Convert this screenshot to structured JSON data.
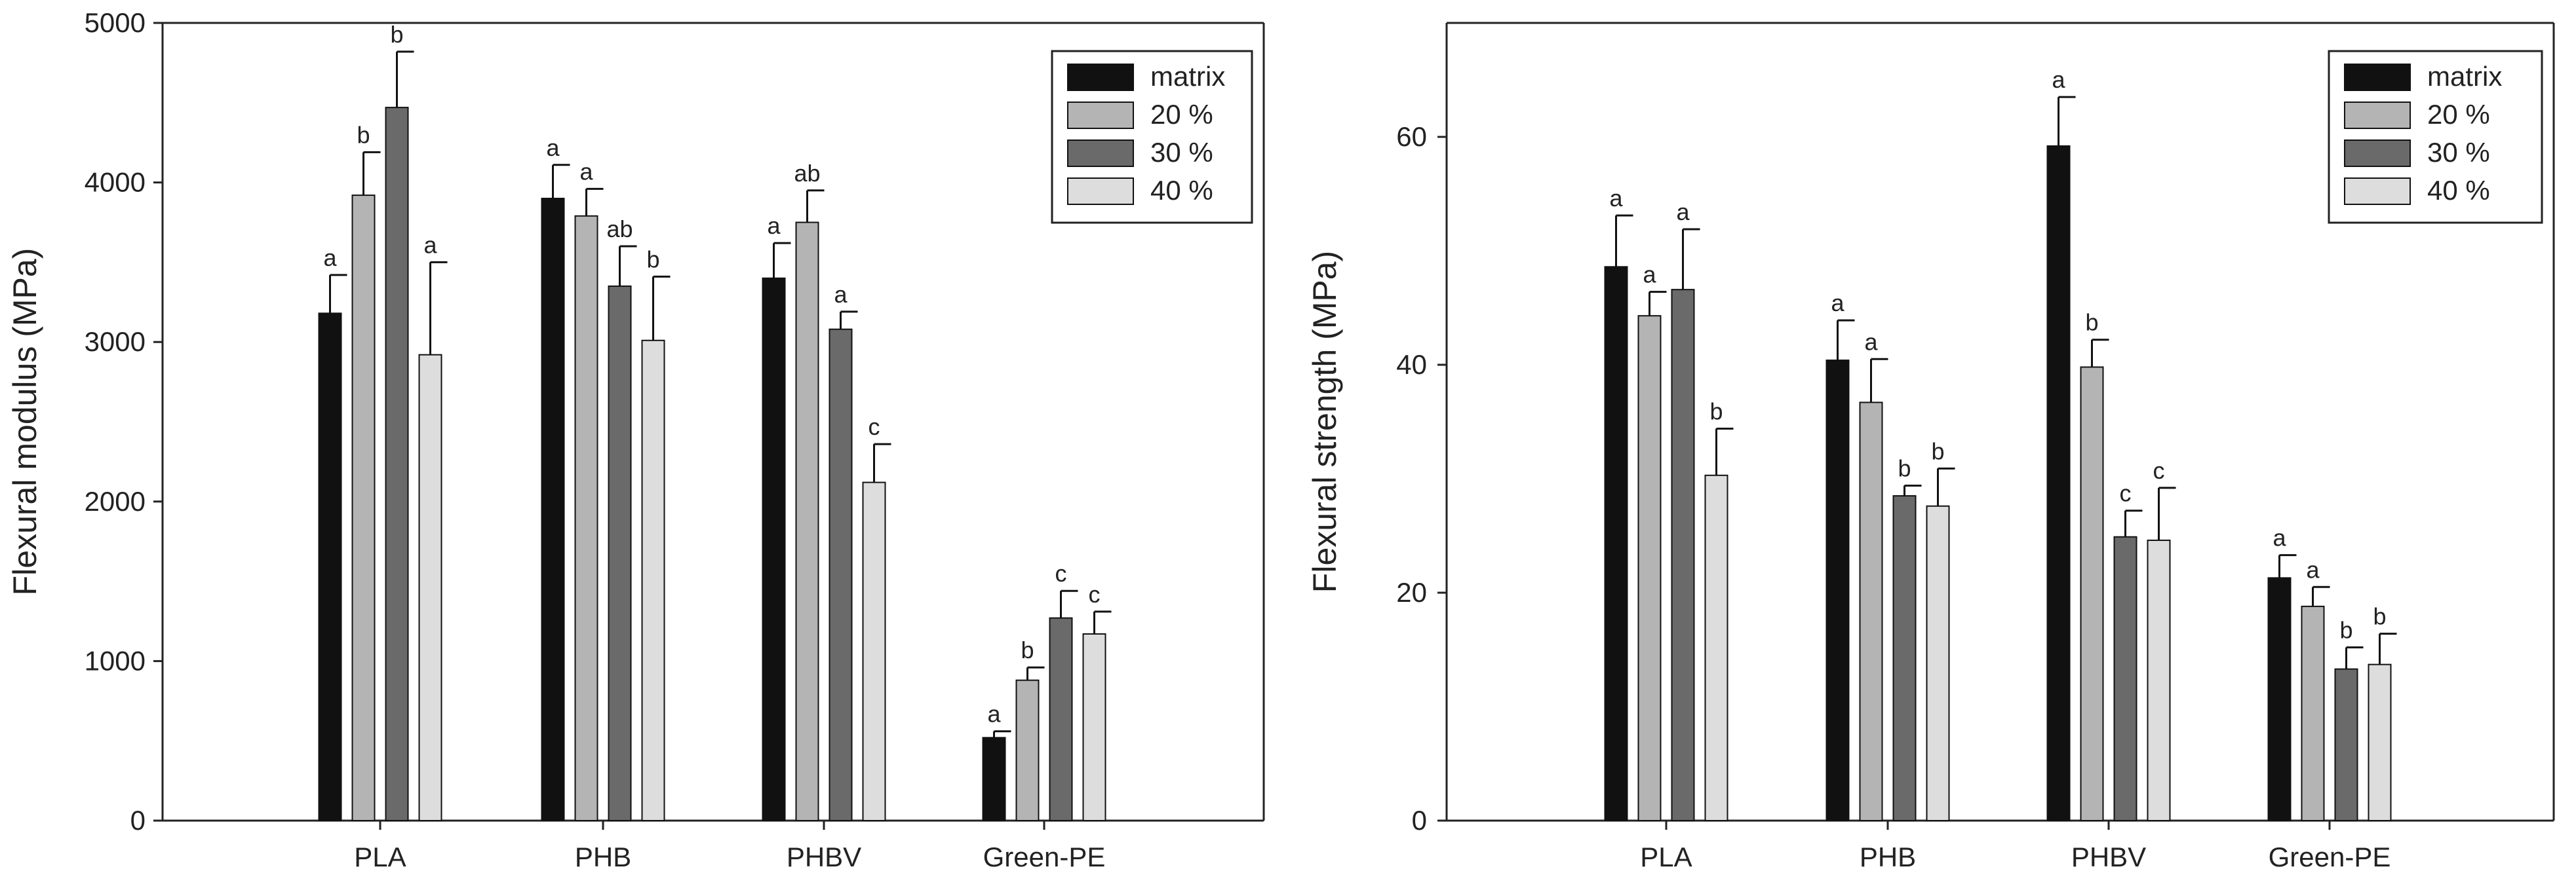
{
  "chart_data": [
    {
      "type": "bar",
      "title": "",
      "xlabel": "",
      "ylabel": "Flexural modulus (MPa)",
      "ylim": [
        0,
        5000
      ],
      "yticks": [
        0,
        1000,
        2000,
        3000,
        4000,
        5000
      ],
      "grid": false,
      "legend_position": "top-right",
      "categories": [
        "PLA",
        "PHB",
        "PHBV",
        "Green-PE"
      ],
      "series": [
        {
          "name": "matrix",
          "color": "#111111",
          "values": [
            3180,
            3900,
            3400,
            520
          ],
          "errors": [
            240,
            210,
            220,
            40
          ],
          "labels": [
            "a",
            "a",
            "a",
            "a"
          ]
        },
        {
          "name": "20 %",
          "color": "#b4b4b4",
          "values": [
            3920,
            3790,
            3750,
            880
          ],
          "errors": [
            270,
            170,
            200,
            80
          ],
          "labels": [
            "b",
            "a",
            "ab",
            "b"
          ]
        },
        {
          "name": "30 %",
          "color": "#6a6a6a",
          "values": [
            4470,
            3350,
            3080,
            1270
          ],
          "errors": [
            350,
            250,
            110,
            170
          ],
          "labels": [
            "b",
            "ab",
            "a",
            "c"
          ]
        },
        {
          "name": "40 %",
          "color": "#dddddd",
          "values": [
            2920,
            3010,
            2120,
            1170
          ],
          "errors": [
            580,
            400,
            240,
            140
          ],
          "labels": [
            "a",
            "b",
            "c",
            "c"
          ]
        }
      ]
    },
    {
      "type": "bar",
      "title": "",
      "xlabel": "",
      "ylabel": "Flexural strength (MPa)",
      "ylim": [
        0,
        70
      ],
      "yticks": [
        0,
        20,
        40,
        60
      ],
      "grid": false,
      "legend_position": "top-right",
      "categories": [
        "PLA",
        "PHB",
        "PHBV",
        "Green-PE"
      ],
      "series": [
        {
          "name": "matrix",
          "color": "#111111",
          "values": [
            48.6,
            40.4,
            59.2,
            21.3
          ],
          "errors": [
            4.5,
            3.5,
            4.3,
            2.0
          ],
          "labels": [
            "a",
            "a",
            "a",
            "a"
          ]
        },
        {
          "name": "20 %",
          "color": "#b4b4b4",
          "values": [
            44.3,
            36.7,
            39.8,
            18.8
          ],
          "errors": [
            2.1,
            3.8,
            2.4,
            1.7
          ],
          "labels": [
            "a",
            "a",
            "b",
            "a"
          ]
        },
        {
          "name": "30 %",
          "color": "#6a6a6a",
          "values": [
            46.6,
            28.5,
            24.9,
            13.3
          ],
          "errors": [
            5.3,
            0.9,
            2.3,
            1.9
          ],
          "labels": [
            "a",
            "b",
            "c",
            "b"
          ]
        },
        {
          "name": "40 %",
          "color": "#dddddd",
          "values": [
            30.3,
            27.6,
            24.6,
            13.7
          ],
          "errors": [
            4.1,
            3.3,
            4.6,
            2.7
          ],
          "labels": [
            "b",
            "b",
            "c",
            "b"
          ]
        }
      ]
    }
  ]
}
